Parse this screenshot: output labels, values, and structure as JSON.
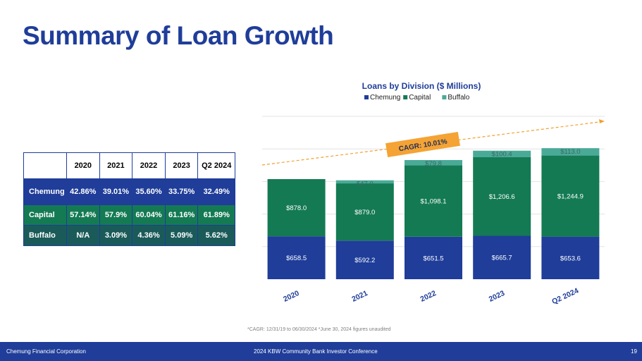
{
  "page": {
    "title": "Summary of Loan Growth",
    "footnote": "*CAGR:  12/31/19 to 06/30/2024   *June 30, 2024 figures unaudited",
    "footer_left": "Chemung Financial Corporation",
    "footer_center": "2024 KBW Community Bank Investor Conference",
    "page_number": "19"
  },
  "table": {
    "columns": [
      "",
      "2020",
      "2021",
      "2022",
      "2023",
      "Q2 2024"
    ],
    "rows": [
      {
        "label": "Chemung",
        "cells": [
          "42.86%",
          "39.01%",
          "35.60%",
          "33.75%",
          "32.49%"
        ]
      },
      {
        "label": "Capital",
        "cells": [
          "57.14%",
          "57.9%",
          "60.04%",
          "61.16%",
          "61.89%"
        ]
      },
      {
        "label": "Buffalo",
        "cells": [
          "N/A",
          "3.09%",
          "4.36%",
          "5.09%",
          "5.62%"
        ]
      }
    ]
  },
  "chart_data": {
    "type": "bar",
    "stacked": true,
    "title": "Loans by Division ($ Millions)",
    "categories": [
      "2020",
      "2021",
      "2022",
      "2023",
      "Q2 2024"
    ],
    "series": [
      {
        "name": "Chemung",
        "color": "#1f3d99",
        "values": [
          658.5,
          592.2,
          651.5,
          665.7,
          653.6
        ],
        "labels": [
          "$658.5",
          "$592.2",
          "$651.5",
          "$665.7",
          "$653.6"
        ]
      },
      {
        "name": "Capital",
        "color": "#147a54",
        "values": [
          878.0,
          879.0,
          1098.1,
          1206.6,
          1244.9
        ],
        "labels": [
          "$878.0",
          "$879.0",
          "$1,098.1",
          "$1,206.6",
          "$1,244.9"
        ]
      },
      {
        "name": "Buffalo",
        "color": "#4aaa98",
        "values": [
          0,
          47.0,
          79.8,
          100.4,
          113.0
        ],
        "labels": [
          "",
          "$47.0",
          "$79.8",
          "$100.4",
          "$113.0"
        ]
      }
    ],
    "ylim": [
      0,
      2500
    ],
    "grid": true,
    "legend": "top",
    "annotation": "CAGR: 10.01%"
  }
}
